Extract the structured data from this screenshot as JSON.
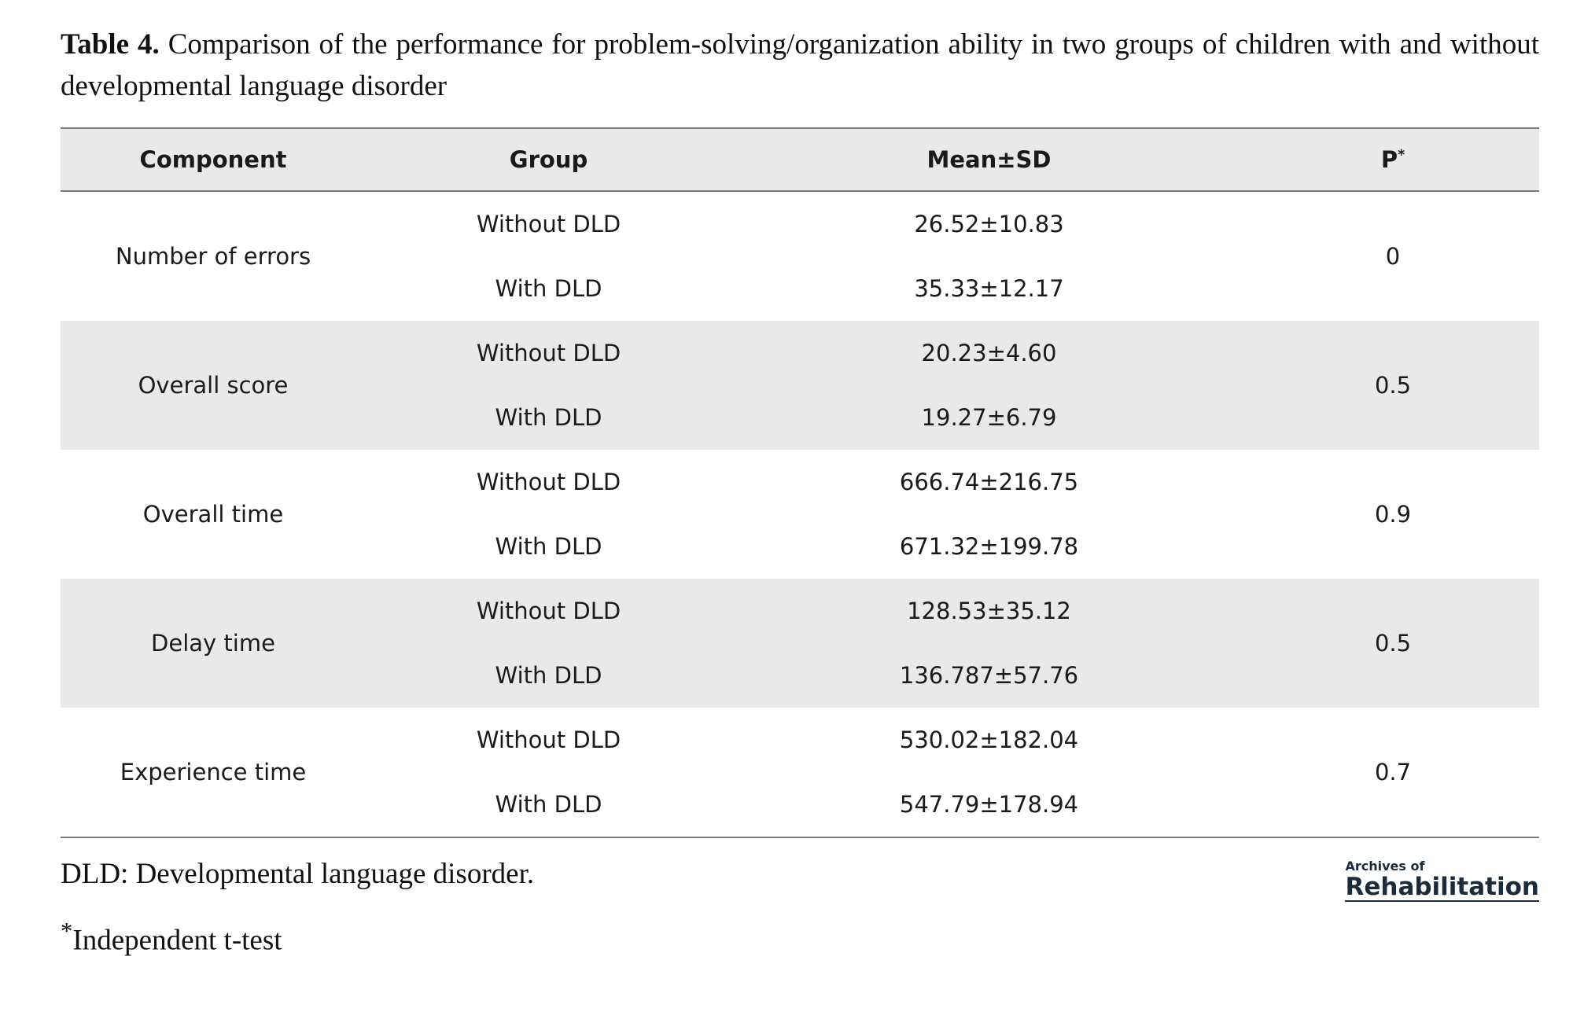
{
  "caption": {
    "label": "Table 4.",
    "text": "Comparison of the performance for problem-solving/organization ability in two groups of children with and without developmental language disorder"
  },
  "table": {
    "headers": {
      "component": "Component",
      "group": "Group",
      "mean_sd": "Mean±SD",
      "p": "P",
      "p_sup": "*"
    },
    "rows": [
      {
        "component": "Number of errors",
        "without_label": "Without DLD",
        "without_value": "26.52±10.83",
        "with_label": "With DLD",
        "with_value": "35.33±12.17",
        "p": "0"
      },
      {
        "component": "Overall score",
        "without_label": "Without DLD",
        "without_value": "20.23±4.60",
        "with_label": "With DLD",
        "with_value": "19.27±6.79",
        "p": "0.5"
      },
      {
        "component": "Overall time",
        "without_label": "Without DLD",
        "without_value": "666.74±216.75",
        "with_label": "With DLD",
        "with_value": "671.32±199.78",
        "p": "0.9"
      },
      {
        "component": "Delay time",
        "without_label": "Without DLD",
        "without_value": "128.53±35.12",
        "with_label": "With DLD",
        "with_value": "136.787±57.76",
        "p": "0.5"
      },
      {
        "component": "Experience time",
        "without_label": "Without DLD",
        "without_value": "530.02±182.04",
        "with_label": "With DLD",
        "with_value": "547.79±178.94",
        "p": "0.7"
      }
    ]
  },
  "footnotes": {
    "abbreviation": "DLD: Developmental language disorder.",
    "test_sup": "*",
    "test": "Independent t-test"
  },
  "logo": {
    "small": "Archives of",
    "big": "Rehabilitation"
  }
}
